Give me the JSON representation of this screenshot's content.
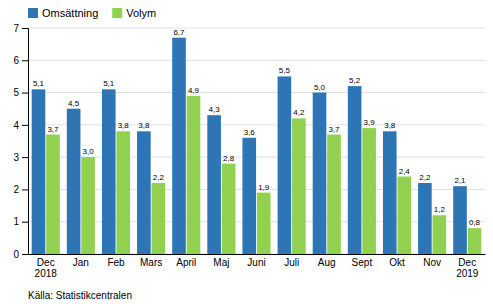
{
  "chart_data": {
    "type": "bar",
    "categories": [
      "Dec\n2018",
      "Jan",
      "Feb",
      "Mars",
      "April",
      "Maj",
      "Juni",
      "Juli",
      "Aug",
      "Sept",
      "Okt",
      "Nov",
      "Dec\n2019"
    ],
    "series": [
      {
        "name": "Omsättning",
        "color": "#2E75B6",
        "values": [
          5.1,
          4.5,
          5.1,
          3.8,
          6.7,
          4.3,
          3.6,
          5.5,
          5.0,
          5.2,
          3.8,
          2.2,
          2.1
        ],
        "value_labels": [
          "5,1",
          "4,5",
          "5,1",
          "3,8",
          "6,7",
          "4,3",
          "3,6",
          "5,5",
          "5,0",
          "5,2",
          "3,8",
          "2,2",
          "2,1"
        ]
      },
      {
        "name": "Volym",
        "color": "#92D050",
        "values": [
          3.7,
          3.0,
          3.8,
          2.2,
          4.9,
          2.8,
          1.9,
          4.2,
          3.7,
          3.9,
          2.4,
          1.2,
          0.8
        ],
        "value_labels": [
          "3,7",
          "3,0",
          "3,8",
          "2,2",
          "4,9",
          "2,8",
          "1,9",
          "4,2",
          "3,7",
          "3,9",
          "2,4",
          "1,2",
          "0,8"
        ]
      }
    ],
    "ylim": [
      0,
      7
    ],
    "yticks": [
      0,
      1,
      2,
      3,
      4,
      5,
      6,
      7
    ],
    "grid": true,
    "legend": "upper left",
    "data_labels": true,
    "source": "Källa: Statistikcentralen"
  }
}
